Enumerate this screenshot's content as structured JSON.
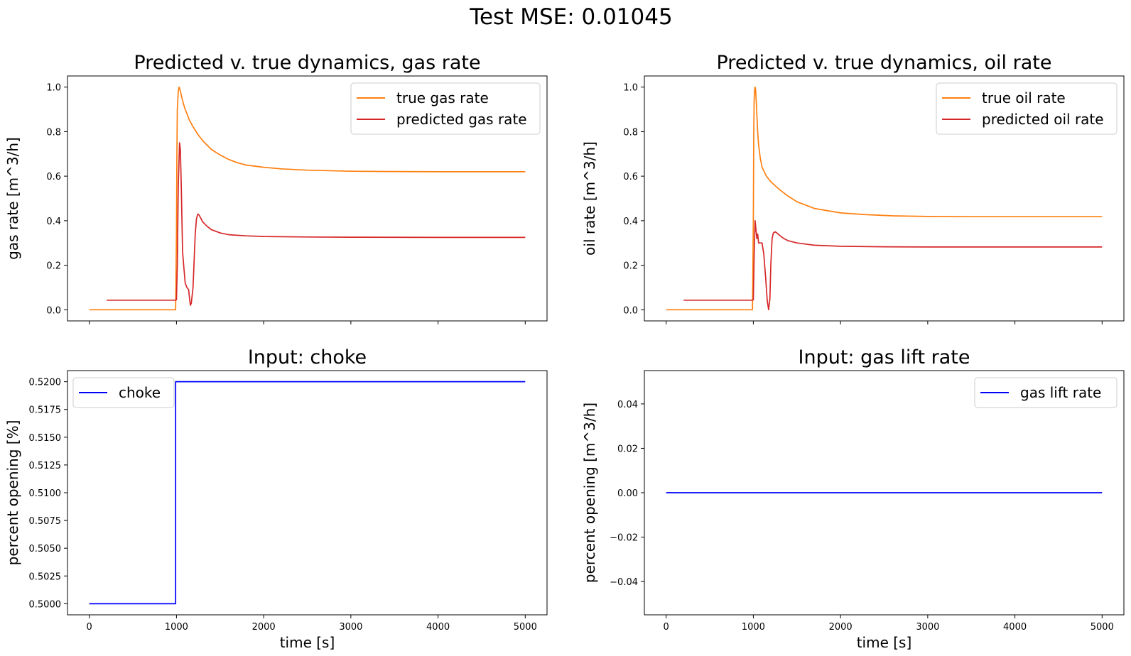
{
  "figure": {
    "suptitle": "Test MSE: 0.01045"
  },
  "chart_data": [
    {
      "type": "line",
      "title": "Predicted v. true dynamics, gas rate",
      "xlabel": "",
      "ylabel": "gas rate [m^3/h]",
      "xlim": [
        -250,
        5250
      ],
      "ylim": [
        -0.05,
        1.05
      ],
      "xticks": [
        0,
        1000,
        2000,
        3000,
        4000,
        5000
      ],
      "xtick_labels_visible": false,
      "yticks": [
        0.0,
        0.2,
        0.4,
        0.6,
        0.8,
        1.0
      ],
      "ytick_labels": [
        "0.0",
        "0.2",
        "0.4",
        "0.6",
        "0.8",
        "1.0"
      ],
      "grid": false,
      "legend": "top-right",
      "series": [
        {
          "name": "true gas rate",
          "color": "#ff7f0e",
          "x": [
            0,
            990,
            1000,
            1005,
            1010,
            1020,
            1030,
            1040,
            1060,
            1080,
            1100,
            1150,
            1200,
            1250,
            1300,
            1400,
            1500,
            1600,
            1700,
            1800,
            2000,
            2200,
            2500,
            3000,
            3500,
            4000,
            4500,
            5000
          ],
          "y": [
            0.0,
            0.0,
            0.35,
            0.7,
            0.9,
            0.98,
            1.0,
            0.99,
            0.955,
            0.925,
            0.9,
            0.85,
            0.815,
            0.785,
            0.76,
            0.72,
            0.695,
            0.675,
            0.66,
            0.65,
            0.64,
            0.633,
            0.627,
            0.622,
            0.621,
            0.62,
            0.62,
            0.62
          ]
        },
        {
          "name": "predicted gas rate",
          "color": "#d62728",
          "x": [
            200,
            990,
            1000,
            1010,
            1020,
            1035,
            1045,
            1055,
            1070,
            1085,
            1100,
            1120,
            1140,
            1150,
            1160,
            1170,
            1190,
            1200,
            1215,
            1230,
            1245,
            1260,
            1280,
            1300,
            1350,
            1400,
            1500,
            1600,
            1800,
            2000,
            2500,
            3000,
            4000,
            5000
          ],
          "y": [
            0.043,
            0.043,
            0.045,
            0.2,
            0.55,
            0.75,
            0.72,
            0.55,
            0.26,
            0.19,
            0.12,
            0.1,
            0.09,
            0.05,
            0.02,
            0.03,
            0.1,
            0.2,
            0.34,
            0.41,
            0.43,
            0.425,
            0.41,
            0.395,
            0.375,
            0.36,
            0.345,
            0.337,
            0.332,
            0.329,
            0.327,
            0.326,
            0.325,
            0.325
          ]
        }
      ]
    },
    {
      "type": "line",
      "title": "Predicted v. true dynamics, oil rate",
      "xlabel": "",
      "ylabel": "oil rate [m^3/h]",
      "xlim": [
        -250,
        5250
      ],
      "ylim": [
        -0.05,
        1.05
      ],
      "xticks": [
        0,
        1000,
        2000,
        3000,
        4000,
        5000
      ],
      "xtick_labels_visible": false,
      "yticks": [
        0.0,
        0.2,
        0.4,
        0.6,
        0.8,
        1.0
      ],
      "ytick_labels": [
        "0.0",
        "0.2",
        "0.4",
        "0.6",
        "0.8",
        "1.0"
      ],
      "grid": false,
      "legend": "top-right",
      "series": [
        {
          "name": "true oil rate",
          "color": "#ff7f0e",
          "x": [
            0,
            990,
            1000,
            1005,
            1010,
            1015,
            1020,
            1025,
            1030,
            1040,
            1050,
            1060,
            1080,
            1100,
            1150,
            1200,
            1300,
            1400,
            1500,
            1700,
            2000,
            2300,
            2600,
            3000,
            3500,
            4000,
            5000
          ],
          "y": [
            0.0,
            0.0,
            0.4,
            0.8,
            0.95,
            0.99,
            1.0,
            0.99,
            0.96,
            0.88,
            0.8,
            0.74,
            0.68,
            0.64,
            0.6,
            0.575,
            0.54,
            0.51,
            0.485,
            0.455,
            0.435,
            0.427,
            0.422,
            0.419,
            0.418,
            0.418,
            0.418
          ]
        },
        {
          "name": "predicted oil rate",
          "color": "#d62728",
          "x": [
            200,
            990,
            1000,
            1010,
            1020,
            1030,
            1040,
            1050,
            1060,
            1080,
            1100,
            1120,
            1140,
            1160,
            1175,
            1190,
            1200,
            1215,
            1230,
            1250,
            1270,
            1300,
            1350,
            1400,
            1500,
            1700,
            2000,
            2500,
            3000,
            4000,
            5000
          ],
          "y": [
            0.043,
            0.043,
            0.045,
            0.25,
            0.4,
            0.36,
            0.32,
            0.34,
            0.3,
            0.3,
            0.3,
            0.25,
            0.15,
            0.04,
            0.0,
            0.05,
            0.2,
            0.32,
            0.345,
            0.35,
            0.345,
            0.335,
            0.32,
            0.31,
            0.3,
            0.29,
            0.285,
            0.283,
            0.282,
            0.282,
            0.282
          ]
        }
      ]
    },
    {
      "type": "line",
      "title": "Input: choke",
      "xlabel": "time [s]",
      "ylabel": "percent opening [%]",
      "xlim": [
        -250,
        5250
      ],
      "ylim": [
        0.499,
        0.521
      ],
      "xticks": [
        0,
        1000,
        2000,
        3000,
        4000,
        5000
      ],
      "xtick_labels": [
        "0",
        "1000",
        "2000",
        "3000",
        "4000",
        "5000"
      ],
      "yticks": [
        0.5,
        0.5025,
        0.505,
        0.5075,
        0.51,
        0.5125,
        0.515,
        0.5175,
        0.52
      ],
      "ytick_labels": [
        "0.5000",
        "0.5025",
        "0.5050",
        "0.5075",
        "0.5100",
        "0.5125",
        "0.5150",
        "0.5175",
        "0.5200"
      ],
      "grid": false,
      "legend": "top-left",
      "series": [
        {
          "name": "choke",
          "color": "#0000ff",
          "x": [
            0,
            990,
            990,
            5000
          ],
          "y": [
            0.5,
            0.5,
            0.52,
            0.52
          ]
        }
      ]
    },
    {
      "type": "line",
      "title": "Input: gas lift rate",
      "xlabel": "time [s]",
      "ylabel": "percent opening [m^3/h]",
      "xlim": [
        -250,
        5250
      ],
      "ylim": [
        -0.055,
        0.055
      ],
      "xticks": [
        0,
        1000,
        2000,
        3000,
        4000,
        5000
      ],
      "xtick_labels": [
        "0",
        "1000",
        "2000",
        "3000",
        "4000",
        "5000"
      ],
      "yticks": [
        -0.04,
        -0.02,
        0.0,
        0.02,
        0.04
      ],
      "ytick_labels": [
        "−0.04",
        "−0.02",
        "0.00",
        "0.02",
        "0.04"
      ],
      "grid": false,
      "legend": "top-right",
      "series": [
        {
          "name": "gas lift rate",
          "color": "#0000ff",
          "x": [
            0,
            5000
          ],
          "y": [
            0.0,
            0.0
          ]
        }
      ]
    }
  ]
}
